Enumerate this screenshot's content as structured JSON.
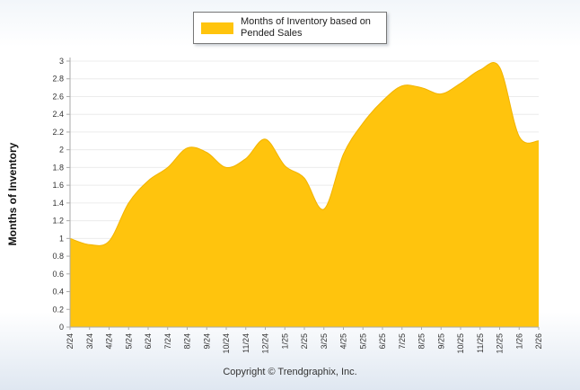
{
  "page": {
    "copyright": "Copyright © Trendgraphix, Inc."
  },
  "legend": {
    "label": "Months of Inventory based on Pended Sales",
    "swatch_color": "#FFC40D"
  },
  "chart_data": {
    "type": "area",
    "title": "Months of Inventory based on Pended Sales",
    "xlabel": "",
    "ylabel": "Months of Inventory",
    "ylim": [
      0,
      3
    ],
    "ytick_step": 0.2,
    "grid": true,
    "legend_position": "top",
    "fill_color": "#FFC40D",
    "edge_color": "#F2B300",
    "axis_color": "#aaaaaa",
    "grid_color": "#ececec",
    "tick_text_color": "#333333",
    "categories": [
      "2/24",
      "3/24",
      "4/24",
      "5/24",
      "6/24",
      "7/24",
      "8/24",
      "9/24",
      "10/24",
      "11/24",
      "12/24",
      "1/25",
      "2/25",
      "3/25",
      "4/25",
      "5/25",
      "6/25",
      "7/25",
      "8/25",
      "9/25",
      "10/25",
      "11/25",
      "12/25",
      "1/26",
      "2/26"
    ],
    "values": [
      1.0,
      0.93,
      0.97,
      1.4,
      1.65,
      1.8,
      2.02,
      1.97,
      1.8,
      1.9,
      2.12,
      1.82,
      1.68,
      1.33,
      1.95,
      2.3,
      2.55,
      2.72,
      2.7,
      2.63,
      2.75,
      2.9,
      2.93,
      2.15,
      2.1
    ]
  }
}
